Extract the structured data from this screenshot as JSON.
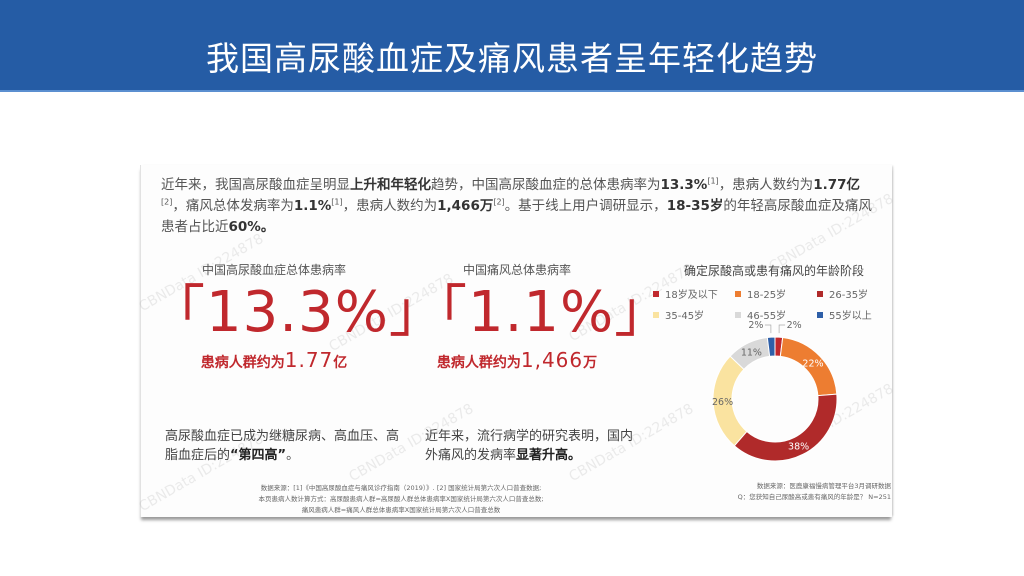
{
  "header": {
    "title": "我国高尿酸血症及痛风患者呈年轻化趋势"
  },
  "intro": {
    "p1": "近年来，我国高尿酸血症呈明显",
    "b1": "上升和年轻化",
    "p2": "趋势，中国高尿酸血症的总体患病率为",
    "b2": "13.3%",
    "s1": "[1]",
    "p3": "，患病人数约为",
    "b3": "1.77亿",
    "s2": "[2]",
    "p4": "，痛风总体发病率为",
    "b4": "1.1%",
    "s3": "[1]",
    "p5": "，患病人数约为",
    "b5": "1,466万",
    "s4": "[2]",
    "p6": "。基于线上用户调研显示，",
    "b6": "18-35岁",
    "p7": "的年轻高尿酸血症及痛风患者占比近",
    "b7": "60%。"
  },
  "stats": [
    {
      "label": "中国高尿酸血症总体患病率",
      "open_bracket": "「",
      "value": "13.3%",
      "close_bracket": "」",
      "people_label": "患病人群约为",
      "people_number": "1.77",
      "people_unit": "亿"
    },
    {
      "label": "中国痛风总体患病率",
      "open_bracket": "「",
      "value": "1.1%",
      "close_bracket": "」",
      "people_label": "患病人群约为",
      "people_number": "1,466",
      "people_unit": "万"
    }
  ],
  "notes": [
    {
      "text": "高尿酸血症已成为继糖尿病、高血压、高脂血症后的",
      "bold": "“第四高”",
      "tail": "。"
    },
    {
      "text": "近年来，流行病学的研究表明，国内外痛风的发病率",
      "bold": "显著升高。",
      "tail": ""
    }
  ],
  "source_left": {
    "line1": "数据来源：[1]《中国高尿酸血症与痛风诊疗指南（2019）》. [2] 国家统计局第六次人口普查数据;",
    "line2": "本页患病人数计算方式：高尿酸患病人群=高尿酸人群总体患病率X国家统计局第六次人口普查总数;",
    "line3": "痛风患病人群=痛风人群总体患病率X国家统计局第六次人口普查总数"
  },
  "source_right": {
    "line1": "数据来源：医鹿康福慢病管理平台3月调研数据",
    "line2": "Q：您获知自己尿酸高或患有痛风的年龄是？ N=251"
  },
  "watermark_text": "CBNData ID:224878",
  "chart_data": {
    "type": "pie",
    "subtype": "donut",
    "title": "确定尿酸高或患有痛风的年龄阶段",
    "categories": [
      "18岁及以下",
      "18-25岁",
      "26-35岁",
      "35-45岁",
      "46-55岁",
      "55岁以上"
    ],
    "values": [
      2,
      22,
      38,
      26,
      11,
      2
    ],
    "labels": [
      "2%",
      "22%",
      "38%",
      "26%",
      "11%",
      "2%"
    ],
    "colors": [
      "#c0282d",
      "#ed7d31",
      "#b02a2a",
      "#fae3a0",
      "#d9d9d9",
      "#2e5fa8"
    ],
    "unit": "%",
    "legend_position": "top",
    "start_angle": "top, clockwise"
  }
}
